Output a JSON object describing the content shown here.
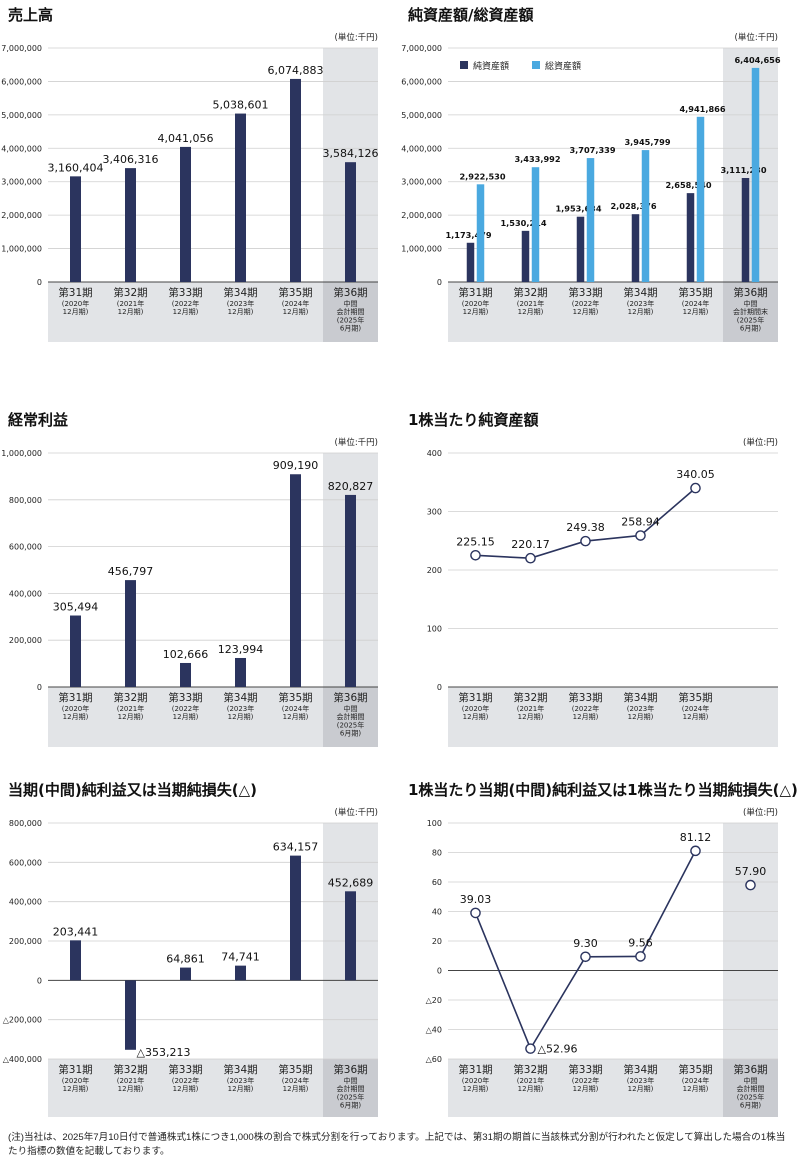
{
  "unit_label": "(単位:千円)",
  "unit_label_yen": "(単位:円)",
  "period_colors": {
    "bar": "#2b345e",
    "bar_light": "#4aa9e0",
    "band": "#e2e4e7",
    "shade": "#c9cbd0",
    "grid": "#cfcfcf",
    "line": "#2b345e"
  },
  "chart_data": [
    {
      "id": "sales",
      "type": "bar",
      "title": "売上高",
      "unit": "(単位:千円)",
      "categories": [
        "第31期",
        "第32期",
        "第33期",
        "第34期",
        "第35期",
        "第36期"
      ],
      "category_sub": [
        [
          "(2020年",
          "12月期)"
        ],
        [
          "(2021年",
          "12月期)"
        ],
        [
          "(2022年",
          "12月期)"
        ],
        [
          "(2023年",
          "12月期)"
        ],
        [
          "(2024年",
          "12月期)"
        ],
        [
          "中間",
          "会計期間",
          "(2025年",
          "6月期)"
        ]
      ],
      "values": [
        3160404,
        3406316,
        4041056,
        5038601,
        6074883,
        3584126
      ],
      "value_labels": [
        "3,160,404",
        "3,406,316",
        "4,041,056",
        "5,038,601",
        "6,074,883",
        "3,584,126"
      ],
      "ylim": [
        0,
        7000000
      ],
      "yticks": [
        0,
        1000000,
        2000000,
        3000000,
        4000000,
        5000000,
        6000000,
        7000000
      ],
      "ytick_labels": [
        "0",
        "1,000,000",
        "2,000,000",
        "3,000,000",
        "4,000,000",
        "5,000,000",
        "6,000,000",
        "7,000,000"
      ]
    },
    {
      "id": "assets",
      "type": "bar",
      "title": "純資産額/総資産額",
      "unit": "(単位:千円)",
      "legend": [
        "純資産額",
        "総資産額"
      ],
      "categories": [
        "第31期",
        "第32期",
        "第33期",
        "第34期",
        "第35期",
        "第36期"
      ],
      "category_sub": [
        [
          "(2020年",
          "12月期)"
        ],
        [
          "(2021年",
          "12月期)"
        ],
        [
          "(2022年",
          "12月期)"
        ],
        [
          "(2023年",
          "12月期)"
        ],
        [
          "(2024年",
          "12月期)"
        ],
        [
          "中間",
          "会計期間末",
          "(2025年",
          "6月期)"
        ]
      ],
      "series": [
        {
          "name": "純資産額",
          "values": [
            1173479,
            1530214,
            1953634,
            2028376,
            2658540,
            3111230
          ],
          "value_labels": [
            "1,173,479",
            "1,530,214",
            "1,953,634",
            "2,028,376",
            "2,658,540",
            "3,111,230"
          ]
        },
        {
          "name": "総資産額",
          "values": [
            2922530,
            3433992,
            3707339,
            3945799,
            4941866,
            6404656
          ],
          "value_labels": [
            "2,922,530",
            "3,433,992",
            "3,707,339",
            "3,945,799",
            "4,941,866",
            "6,404,656"
          ]
        }
      ],
      "ylim": [
        0,
        7000000
      ],
      "yticks": [
        0,
        1000000,
        2000000,
        3000000,
        4000000,
        5000000,
        6000000,
        7000000
      ],
      "ytick_labels": [
        "0",
        "1,000,000",
        "2,000,000",
        "3,000,000",
        "4,000,000",
        "5,000,000",
        "6,000,000",
        "7,000,000"
      ]
    },
    {
      "id": "ordinary",
      "type": "bar",
      "title": "経常利益",
      "unit": "(単位:千円)",
      "categories": [
        "第31期",
        "第32期",
        "第33期",
        "第34期",
        "第35期",
        "第36期"
      ],
      "category_sub": [
        [
          "(2020年",
          "12月期)"
        ],
        [
          "(2021年",
          "12月期)"
        ],
        [
          "(2022年",
          "12月期)"
        ],
        [
          "(2023年",
          "12月期)"
        ],
        [
          "(2024年",
          "12月期)"
        ],
        [
          "中間",
          "会計期間",
          "(2025年",
          "6月期)"
        ]
      ],
      "values": [
        305494,
        456797,
        102666,
        123994,
        909190,
        820827
      ],
      "value_labels": [
        "305,494",
        "456,797",
        "102,666",
        "123,994",
        "909,190",
        "820,827"
      ],
      "ylim": [
        0,
        1000000
      ],
      "yticks": [
        0,
        200000,
        400000,
        600000,
        800000,
        1000000
      ],
      "ytick_labels": [
        "0",
        "200,000",
        "400,000",
        "600,000",
        "800,000",
        "1,000,000"
      ]
    },
    {
      "id": "bps",
      "type": "line",
      "title": "1株当たり純資産額",
      "unit": "(単位:円)",
      "categories": [
        "第31期",
        "第32期",
        "第33期",
        "第34期",
        "第35期"
      ],
      "category_sub": [
        [
          "(2020年",
          "12月期)"
        ],
        [
          "(2021年",
          "12月期)"
        ],
        [
          "(2022年",
          "12月期)"
        ],
        [
          "(2023年",
          "12月期)"
        ],
        [
          "(2024年",
          "12月期)"
        ]
      ],
      "values": [
        225.15,
        220.17,
        249.38,
        258.94,
        340.05
      ],
      "value_labels": [
        "225.15",
        "220.17",
        "249.38",
        "258.94",
        "340.05"
      ],
      "ylim": [
        0,
        400
      ],
      "yticks": [
        0,
        100,
        200,
        300,
        400
      ],
      "ytick_labels": [
        "0",
        "100",
        "200",
        "300",
        "400"
      ]
    },
    {
      "id": "netincome",
      "type": "bar",
      "title": "当期(中間)純利益又は当期純損失(△)",
      "unit": "(単位:千円)",
      "categories": [
        "第31期",
        "第32期",
        "第33期",
        "第34期",
        "第35期",
        "第36期"
      ],
      "category_sub": [
        [
          "(2020年",
          "12月期)"
        ],
        [
          "(2021年",
          "12月期)"
        ],
        [
          "(2022年",
          "12月期)"
        ],
        [
          "(2023年",
          "12月期)"
        ],
        [
          "(2024年",
          "12月期)"
        ],
        [
          "中間",
          "会計期間",
          "(2025年",
          "6月期)"
        ]
      ],
      "values": [
        203441,
        -353213,
        64861,
        74741,
        634157,
        452689
      ],
      "value_labels": [
        "203,441",
        "△353,213",
        "64,861",
        "74,741",
        "634,157",
        "452,689"
      ],
      "ylim": [
        -400000,
        800000
      ],
      "yticks": [
        -400000,
        -200000,
        0,
        200000,
        400000,
        600000,
        800000
      ],
      "ytick_labels": [
        "△400,000",
        "△200,000",
        "0",
        "200,000",
        "400,000",
        "600,000",
        "800,000"
      ]
    },
    {
      "id": "eps",
      "type": "line",
      "title": "1株当たり当期(中間)純利益又は1株当たり当期純損失(△)",
      "unit": "(単位:円)",
      "categories": [
        "第31期",
        "第32期",
        "第33期",
        "第34期",
        "第35期",
        "第36期"
      ],
      "category_sub": [
        [
          "(2020年",
          "12月期)"
        ],
        [
          "(2021年",
          "12月期)"
        ],
        [
          "(2022年",
          "12月期)"
        ],
        [
          "(2023年",
          "12月期)"
        ],
        [
          "(2024年",
          "12月期)"
        ],
        [
          "中間",
          "会計期間",
          "(2025年",
          "6月期)"
        ]
      ],
      "values": [
        39.03,
        -52.96,
        9.3,
        9.56,
        81.12,
        57.9
      ],
      "value_labels": [
        "39.03",
        "△52.96",
        "9.30",
        "9.56",
        "81.12",
        "57.90"
      ],
      "ylim": [
        -60,
        100
      ],
      "yticks": [
        -60,
        -40,
        -20,
        0,
        20,
        40,
        60,
        80,
        100
      ],
      "ytick_labels": [
        "△60",
        "△40",
        "△20",
        "0",
        "20",
        "40",
        "60",
        "80",
        "100"
      ]
    }
  ],
  "footnote": "(注)当社は、2025年7月10日付で普通株式1株につき1,000株の割合で株式分割を行っております。上記では、第31期の期首に当該株式分割が行われたと仮定して算出した場合の1株当たり指標の数値を記載しております。"
}
